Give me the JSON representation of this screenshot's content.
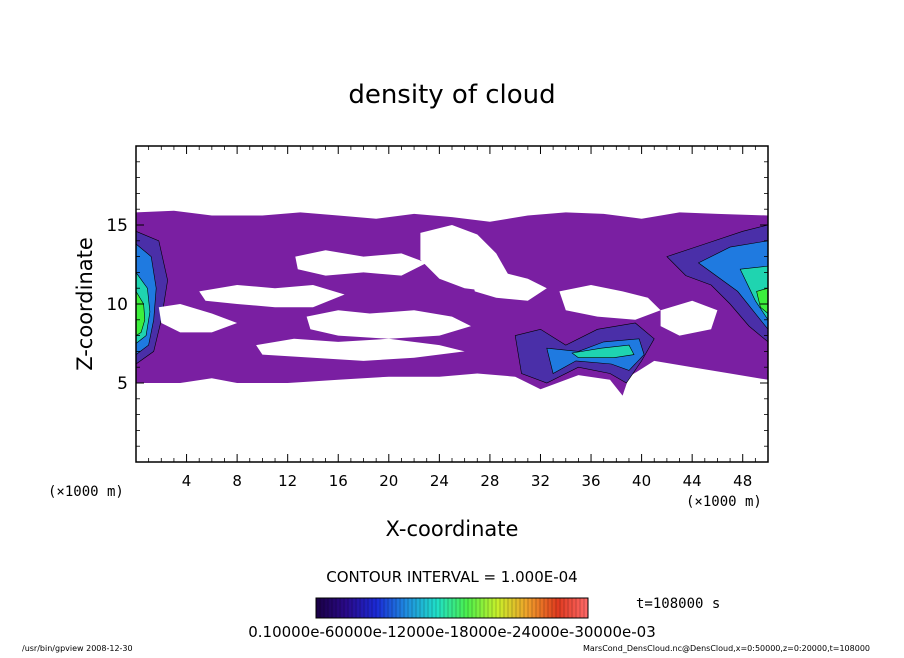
{
  "chart_data": {
    "type": "heatmap",
    "title": "density of cloud",
    "xlabel": "X-coordinate",
    "ylabel": "Z-coordinate",
    "x_unit": "(×1000 m)",
    "y_unit": "(×1000 m)",
    "xlim": [
      0,
      50
    ],
    "ylim": [
      0,
      20
    ],
    "x_ticks": [
      4,
      8,
      12,
      16,
      20,
      24,
      28,
      32,
      36,
      40,
      44,
      48
    ],
    "y_ticks": [
      5,
      10,
      15
    ],
    "contour_interval": "CONTOUR INTERVAL = 1.000E-04",
    "time_label": "t=108000 s",
    "colorbar_text": "0.10000e-60000e-12000e-18000e-24000e-30000e-03",
    "colorbar_stops": [
      "#1a0044",
      "#2a0a8a",
      "#1b2ad6",
      "#1f8ee0",
      "#1fe0c8",
      "#4cf04c",
      "#c8f02a",
      "#f0a02a",
      "#e03a1f",
      "#ff6a6a"
    ],
    "footer_left": "/usr/bin/gpview   2008-12-30",
    "footer_right": "MarsCond_DensCloud.nc@DensCloud,x=0:50000,z=0:20000,t=108000",
    "colors": {
      "low": "#7a1fa2",
      "mid_low": "#4a2fa8",
      "mid": "#1f7ae0",
      "high": "#1fd4b0",
      "peak": "#3cf03c",
      "top": "#b8f02a"
    },
    "regions": [
      {
        "level": "low",
        "points": [
          [
            0.0,
            15.8
          ],
          [
            3.0,
            15.9
          ],
          [
            6.0,
            15.6
          ],
          [
            10.0,
            15.6
          ],
          [
            13.0,
            15.8
          ],
          [
            16.0,
            15.6
          ],
          [
            19.0,
            15.4
          ],
          [
            22.0,
            15.7
          ],
          [
            25.0,
            15.5
          ],
          [
            28.0,
            15.2
          ],
          [
            31.0,
            15.6
          ],
          [
            34.0,
            15.8
          ],
          [
            37.0,
            15.7
          ],
          [
            40.0,
            15.4
          ],
          [
            43.0,
            15.8
          ],
          [
            46.0,
            15.7
          ],
          [
            50.0,
            15.6
          ],
          [
            50.0,
            5.2
          ],
          [
            47.0,
            5.6
          ],
          [
            44.0,
            6.0
          ],
          [
            41.0,
            6.4
          ],
          [
            39.0,
            5.4
          ],
          [
            38.5,
            4.2
          ],
          [
            37.5,
            5.2
          ],
          [
            35.0,
            5.5
          ],
          [
            32.0,
            4.6
          ],
          [
            30.0,
            5.4
          ],
          [
            27.0,
            5.6
          ],
          [
            24.0,
            5.4
          ],
          [
            20.0,
            5.4
          ],
          [
            16.0,
            5.2
          ],
          [
            12.0,
            5.0
          ],
          [
            8.0,
            5.0
          ],
          [
            6.0,
            5.3
          ],
          [
            3.5,
            5.0
          ],
          [
            0.0,
            5.0
          ]
        ]
      },
      {
        "level": "mid_low",
        "points": [
          [
            0.0,
            14.6
          ],
          [
            1.8,
            14.0
          ],
          [
            2.5,
            11.5
          ],
          [
            2.0,
            9.0
          ],
          [
            1.4,
            7.0
          ],
          [
            0.0,
            6.2
          ]
        ]
      },
      {
        "level": "mid",
        "points": [
          [
            0.0,
            13.8
          ],
          [
            1.2,
            13.0
          ],
          [
            1.6,
            11.0
          ],
          [
            1.4,
            9.0
          ],
          [
            1.0,
            7.4
          ],
          [
            0.0,
            6.8
          ]
        ]
      },
      {
        "level": "high",
        "points": [
          [
            0.0,
            12.0
          ],
          [
            0.9,
            11.0
          ],
          [
            1.1,
            9.5
          ],
          [
            0.8,
            8.0
          ],
          [
            0.0,
            7.5
          ]
        ]
      },
      {
        "level": "peak",
        "points": [
          [
            0.0,
            10.8
          ],
          [
            0.6,
            10.0
          ],
          [
            0.7,
            9.0
          ],
          [
            0.4,
            8.2
          ],
          [
            0.0,
            8.0
          ]
        ]
      },
      {
        "level": "mid_low",
        "points": [
          [
            30.0,
            8.0
          ],
          [
            32.0,
            8.4
          ],
          [
            34.0,
            7.4
          ],
          [
            36.5,
            8.4
          ],
          [
            39.5,
            8.8
          ],
          [
            41.0,
            7.8
          ],
          [
            40.0,
            6.4
          ],
          [
            38.8,
            5.0
          ],
          [
            37.5,
            5.6
          ],
          [
            35.0,
            6.0
          ],
          [
            32.5,
            5.0
          ],
          [
            30.5,
            5.6
          ]
        ]
      },
      {
        "level": "mid",
        "points": [
          [
            32.5,
            7.2
          ],
          [
            35.0,
            7.0
          ],
          [
            37.0,
            7.6
          ],
          [
            39.8,
            7.8
          ],
          [
            40.2,
            6.8
          ],
          [
            39.0,
            5.8
          ],
          [
            37.6,
            6.2
          ],
          [
            34.8,
            6.4
          ],
          [
            33.0,
            5.6
          ]
        ]
      },
      {
        "level": "high",
        "points": [
          [
            34.5,
            6.9
          ],
          [
            36.8,
            7.2
          ],
          [
            39.0,
            7.4
          ],
          [
            39.4,
            6.8
          ],
          [
            37.8,
            6.6
          ],
          [
            35.0,
            6.6
          ]
        ]
      },
      {
        "level": "mid_low",
        "points": [
          [
            42.0,
            13.0
          ],
          [
            45.0,
            13.8
          ],
          [
            48.0,
            14.6
          ],
          [
            50.0,
            15.0
          ],
          [
            50.0,
            7.6
          ],
          [
            48.5,
            8.6
          ],
          [
            47.0,
            10.0
          ],
          [
            45.5,
            11.2
          ],
          [
            43.5,
            11.8
          ]
        ]
      },
      {
        "level": "mid",
        "points": [
          [
            44.5,
            12.6
          ],
          [
            47.0,
            13.6
          ],
          [
            50.0,
            14.0
          ],
          [
            50.0,
            8.4
          ],
          [
            48.8,
            9.6
          ],
          [
            47.6,
            10.8
          ]
        ]
      },
      {
        "level": "high",
        "points": [
          [
            47.8,
            12.2
          ],
          [
            50.0,
            12.4
          ],
          [
            50.0,
            9.0
          ],
          [
            49.0,
            10.2
          ]
        ]
      },
      {
        "level": "peak",
        "points": [
          [
            49.1,
            10.8
          ],
          [
            50.0,
            11.0
          ],
          [
            50.0,
            9.4
          ],
          [
            49.4,
            9.8
          ]
        ]
      }
    ],
    "gaps": [
      {
        "points": [
          [
            12.6,
            13.0
          ],
          [
            15.0,
            13.4
          ],
          [
            18.0,
            13.0
          ],
          [
            21.0,
            13.2
          ],
          [
            23.0,
            12.6
          ],
          [
            21.0,
            11.8
          ],
          [
            18.0,
            12.0
          ],
          [
            15.0,
            11.8
          ],
          [
            12.8,
            12.2
          ]
        ]
      },
      {
        "points": [
          [
            22.5,
            14.5
          ],
          [
            25.0,
            15.0
          ],
          [
            27.0,
            14.4
          ],
          [
            28.5,
            13.2
          ],
          [
            29.5,
            11.8
          ],
          [
            28.0,
            10.8
          ],
          [
            26.0,
            11.0
          ],
          [
            24.0,
            11.6
          ],
          [
            22.5,
            12.8
          ]
        ]
      },
      {
        "points": [
          [
            5.0,
            10.8
          ],
          [
            8.0,
            11.2
          ],
          [
            11.0,
            11.0
          ],
          [
            14.0,
            11.2
          ],
          [
            16.5,
            10.6
          ],
          [
            14.0,
            9.8
          ],
          [
            11.0,
            9.8
          ],
          [
            8.0,
            10.0
          ],
          [
            5.5,
            10.2
          ]
        ]
      },
      {
        "points": [
          [
            1.8,
            9.8
          ],
          [
            3.5,
            10.0
          ],
          [
            6.0,
            9.4
          ],
          [
            8.0,
            8.8
          ],
          [
            6.0,
            8.2
          ],
          [
            3.5,
            8.2
          ],
          [
            2.0,
            8.8
          ]
        ]
      },
      {
        "points": [
          [
            13.5,
            9.2
          ],
          [
            16.0,
            9.6
          ],
          [
            18.5,
            9.4
          ],
          [
            22.0,
            9.6
          ],
          [
            25.0,
            9.2
          ],
          [
            26.5,
            8.6
          ],
          [
            24.0,
            8.0
          ],
          [
            20.0,
            7.8
          ],
          [
            16.0,
            8.0
          ],
          [
            13.8,
            8.4
          ]
        ]
      },
      {
        "points": [
          [
            26.5,
            11.8
          ],
          [
            29.0,
            12.0
          ],
          [
            31.0,
            11.6
          ],
          [
            32.5,
            11.0
          ],
          [
            31.0,
            10.2
          ],
          [
            28.5,
            10.4
          ],
          [
            26.8,
            10.8
          ]
        ]
      },
      {
        "points": [
          [
            33.5,
            10.8
          ],
          [
            36.0,
            11.2
          ],
          [
            38.5,
            10.8
          ],
          [
            40.5,
            10.4
          ],
          [
            41.5,
            9.6
          ],
          [
            39.5,
            9.0
          ],
          [
            36.5,
            9.2
          ],
          [
            34.0,
            9.6
          ]
        ]
      },
      {
        "points": [
          [
            9.5,
            7.4
          ],
          [
            12.5,
            7.8
          ],
          [
            16.0,
            7.6
          ],
          [
            20.0,
            7.8
          ],
          [
            24.0,
            7.4
          ],
          [
            26.0,
            7.0
          ],
          [
            22.0,
            6.6
          ],
          [
            18.0,
            6.4
          ],
          [
            14.0,
            6.6
          ],
          [
            10.0,
            6.8
          ]
        ]
      },
      {
        "points": [
          [
            41.5,
            9.6
          ],
          [
            44.0,
            10.2
          ],
          [
            46.0,
            9.6
          ],
          [
            45.5,
            8.4
          ],
          [
            43.0,
            8.0
          ],
          [
            41.5,
            8.6
          ]
        ]
      }
    ]
  }
}
